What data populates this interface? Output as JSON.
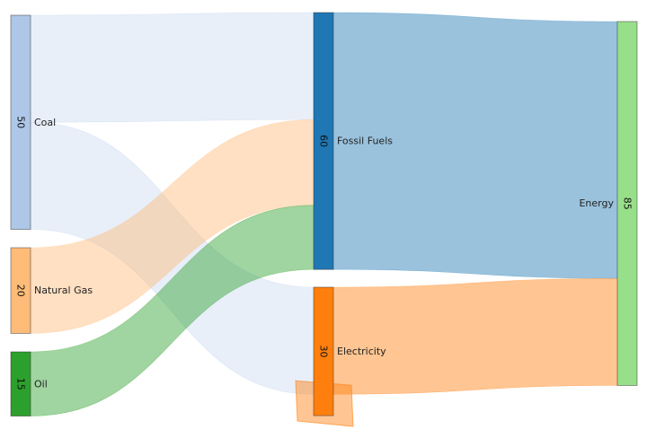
{
  "chart_data": {
    "type": "sankey",
    "nodes": [
      {
        "id": "coal",
        "name": "Coal",
        "value": 50,
        "color": "#aec7e8"
      },
      {
        "id": "natural_gas",
        "name": "Natural Gas",
        "value": 20,
        "color": "#ffbb78"
      },
      {
        "id": "oil",
        "name": "Oil",
        "value": 15,
        "color": "#2ca02c"
      },
      {
        "id": "fossil_fuels",
        "name": "Fossil Fuels",
        "value": 60,
        "color": "#1f77b4"
      },
      {
        "id": "electricity",
        "name": "Electricity",
        "value": 30,
        "color": "#ff7f0e"
      },
      {
        "id": "energy",
        "name": "Energy",
        "value": 85,
        "color": "#98df8a"
      }
    ],
    "links": [
      {
        "source": "coal",
        "target": "fossil_fuels",
        "value": 25,
        "color": "#aec7e8"
      },
      {
        "source": "coal",
        "target": "electricity",
        "value": 25,
        "color": "#aec7e8"
      },
      {
        "source": "natural_gas",
        "target": "fossil_fuels",
        "value": 20,
        "color": "#ffbb78"
      },
      {
        "source": "oil",
        "target": "fossil_fuels",
        "value": 15,
        "color": "#2ca02c"
      },
      {
        "source": "fossil_fuels",
        "target": "energy",
        "value": 60,
        "color": "#1f77b4"
      },
      {
        "source": "electricity",
        "target": "energy",
        "value": 25,
        "color": "#ff7f0e"
      },
      {
        "source": "electricity",
        "target": "electricity",
        "value": 5,
        "color": "#ff7f0e"
      }
    ]
  }
}
